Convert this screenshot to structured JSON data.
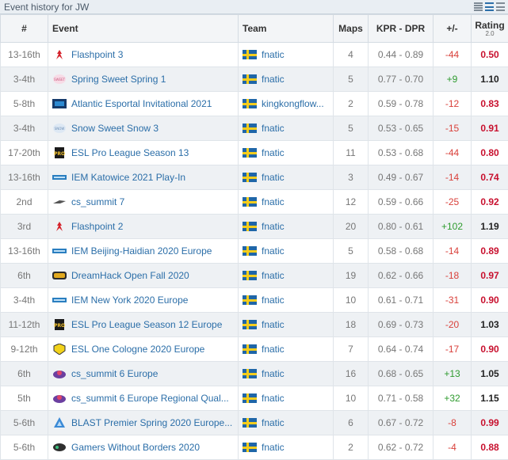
{
  "header": {
    "title": "Event history for JW"
  },
  "columns": {
    "num": "#",
    "event": "Event",
    "team": "Team",
    "maps": "Maps",
    "kprdpr": "KPR - DPR",
    "diff": "+/-",
    "rating": "Rating",
    "rating_sub": "2.0"
  },
  "colors": {
    "positive": "#2e9b2e",
    "negative": "#d9413b",
    "rating_low": "#c8102e",
    "link": "#2b6ea8"
  },
  "rows": [
    {
      "place": "13-16th",
      "event": "Flashpoint 3",
      "icon": "flashpoint-logo",
      "team": "fnatic",
      "maps": "4",
      "kprdpr": "0.44 - 0.89",
      "diff": "-44",
      "rating": "0.50"
    },
    {
      "place": "3-4th",
      "event": "Spring Sweet Spring 1",
      "icon": "sweet-spring-logo",
      "team": "fnatic",
      "maps": "5",
      "kprdpr": "0.77 - 0.70",
      "diff": "+9",
      "rating": "1.10"
    },
    {
      "place": "5-8th",
      "event": "Atlantic Esportal Invitational 2021",
      "icon": "esportal-logo",
      "team": "kingkongflow...",
      "maps": "2",
      "kprdpr": "0.59 - 0.78",
      "diff": "-12",
      "rating": "0.83"
    },
    {
      "place": "3-4th",
      "event": "Snow Sweet Snow 3",
      "icon": "sweet-snow-logo",
      "team": "fnatic",
      "maps": "5",
      "kprdpr": "0.53 - 0.65",
      "diff": "-15",
      "rating": "0.91"
    },
    {
      "place": "17-20th",
      "event": "ESL Pro League Season 13",
      "icon": "esl-pro-league-logo",
      "team": "fnatic",
      "maps": "11",
      "kprdpr": "0.53 - 0.68",
      "diff": "-44",
      "rating": "0.80"
    },
    {
      "place": "13-16th",
      "event": "IEM Katowice 2021 Play-In",
      "icon": "iem-logo",
      "team": "fnatic",
      "maps": "3",
      "kprdpr": "0.49 - 0.67",
      "diff": "-14",
      "rating": "0.74"
    },
    {
      "place": "2nd",
      "event": "cs_summit 7",
      "icon": "cs-summit-logo",
      "team": "fnatic",
      "maps": "12",
      "kprdpr": "0.59 - 0.66",
      "diff": "-25",
      "rating": "0.92"
    },
    {
      "place": "3rd",
      "event": "Flashpoint 2",
      "icon": "flashpoint-logo",
      "team": "fnatic",
      "maps": "20",
      "kprdpr": "0.80 - 0.61",
      "diff": "+102",
      "rating": "1.19"
    },
    {
      "place": "13-16th",
      "event": "IEM Beijing-Haidian 2020 Europe",
      "icon": "iem-logo",
      "team": "fnatic",
      "maps": "5",
      "kprdpr": "0.58 - 0.68",
      "diff": "-14",
      "rating": "0.89"
    },
    {
      "place": "6th",
      "event": "DreamHack Open Fall 2020",
      "icon": "dreamhack-open-logo",
      "team": "fnatic",
      "maps": "19",
      "kprdpr": "0.62 - 0.66",
      "diff": "-18",
      "rating": "0.97"
    },
    {
      "place": "3-4th",
      "event": "IEM New York 2020 Europe",
      "icon": "iem-logo",
      "team": "fnatic",
      "maps": "10",
      "kprdpr": "0.61 - 0.71",
      "diff": "-31",
      "rating": "0.90"
    },
    {
      "place": "11-12th",
      "event": "ESL Pro League Season 12 Europe",
      "icon": "esl-pro-league-logo",
      "team": "fnatic",
      "maps": "18",
      "kprdpr": "0.69 - 0.73",
      "diff": "-20",
      "rating": "1.03"
    },
    {
      "place": "9-12th",
      "event": "ESL One Cologne 2020 Europe",
      "icon": "esl-one-logo",
      "team": "fnatic",
      "maps": "7",
      "kprdpr": "0.64 - 0.74",
      "diff": "-17",
      "rating": "0.90"
    },
    {
      "place": "6th",
      "event": "cs_summit 6 Europe",
      "icon": "cs-summit-6-logo",
      "team": "fnatic",
      "maps": "16",
      "kprdpr": "0.68 - 0.65",
      "diff": "+13",
      "rating": "1.05"
    },
    {
      "place": "5th",
      "event": "cs_summit 6 Europe Regional Qual...",
      "icon": "cs-summit-6-logo",
      "team": "fnatic",
      "maps": "10",
      "kprdpr": "0.71 - 0.58",
      "diff": "+32",
      "rating": "1.15"
    },
    {
      "place": "5-6th",
      "event": "BLAST Premier Spring 2020 Europe...",
      "icon": "blast-logo",
      "team": "fnatic",
      "maps": "6",
      "kprdpr": "0.67 - 0.72",
      "diff": "-8",
      "rating": "0.99"
    },
    {
      "place": "5-6th",
      "event": "Gamers Without Borders 2020",
      "icon": "gamers-without-borders-logo",
      "team": "fnatic",
      "maps": "2",
      "kprdpr": "0.62 - 0.72",
      "diff": "-4",
      "rating": "0.88"
    }
  ]
}
